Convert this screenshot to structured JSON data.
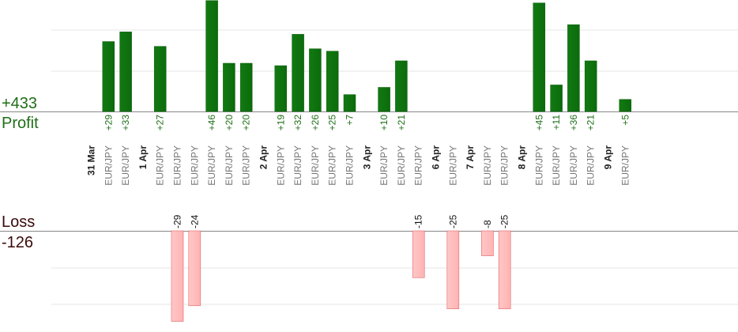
{
  "summary": {
    "profit_total": "+433",
    "profit_label": "Profit",
    "loss_label": "Loss",
    "loss_total": "-126"
  },
  "colors": {
    "profit_bar": "#0b6b0b",
    "profit_text": "#1f6e17",
    "loss_bar": "#ffb3b3",
    "loss_bar_border": "#e06666",
    "loss_text": "#3a0a0a",
    "date_text": "#222222",
    "pair_text": "#777777",
    "grid": "#e6e6e6",
    "baseline": "#888888"
  },
  "chart_data": {
    "type": "bar",
    "profit_axis_ylim": [
      0,
      55
    ],
    "loss_axis_ylim": [
      -30,
      0
    ],
    "grid": true,
    "categories": [
      "31 Mar",
      "EUR/JPY",
      "EUR/JPY",
      "1 Apr",
      "EUR/JPY",
      "EUR/JPY",
      "EUR/JPY",
      "EUR/JPY",
      "EUR/JPY",
      "EUR/JPY",
      "2 Apr",
      "EUR/JPY",
      "EUR/JPY",
      "EUR/JPY",
      "EUR/JPY",
      "EUR/JPY",
      "3 Apr",
      "EUR/JPY",
      "EUR/JPY",
      "EUR/JPY",
      "6 Apr",
      "EUR/JPY",
      "7 Apr",
      "EUR/JPY",
      "EUR/JPY",
      "8 Apr",
      "EUR/JPY",
      "EUR/JPY",
      "EUR/JPY",
      "EUR/JPY",
      "9 Apr",
      "EUR/JPY"
    ],
    "category_kind": [
      "date",
      "trade",
      "trade",
      "date",
      "trade",
      "trade",
      "trade",
      "trade",
      "trade",
      "trade",
      "date",
      "trade",
      "trade",
      "trade",
      "trade",
      "trade",
      "date",
      "trade",
      "trade",
      "trade",
      "date",
      "trade",
      "date",
      "trade",
      "trade",
      "date",
      "trade",
      "trade",
      "trade",
      "trade",
      "date",
      "trade"
    ],
    "values": [
      null,
      29,
      33,
      null,
      27,
      -29,
      -24,
      46,
      20,
      20,
      null,
      19,
      32,
      26,
      25,
      7,
      null,
      10,
      21,
      -15,
      null,
      -25,
      null,
      -8,
      -25,
      null,
      45,
      11,
      36,
      21,
      null,
      5
    ],
    "data_labels": [
      "",
      "+29",
      "+33",
      "",
      "+27",
      "-29",
      "-24",
      "+46",
      "+20",
      "+20",
      "",
      "+19",
      "+32",
      "+26",
      "+25",
      "+7",
      "",
      "+10",
      "+21",
      "-15",
      "",
      "-25",
      "",
      "-8",
      "-25",
      "",
      "+45",
      "+11",
      "+36",
      "+21",
      "",
      "+5"
    ]
  }
}
